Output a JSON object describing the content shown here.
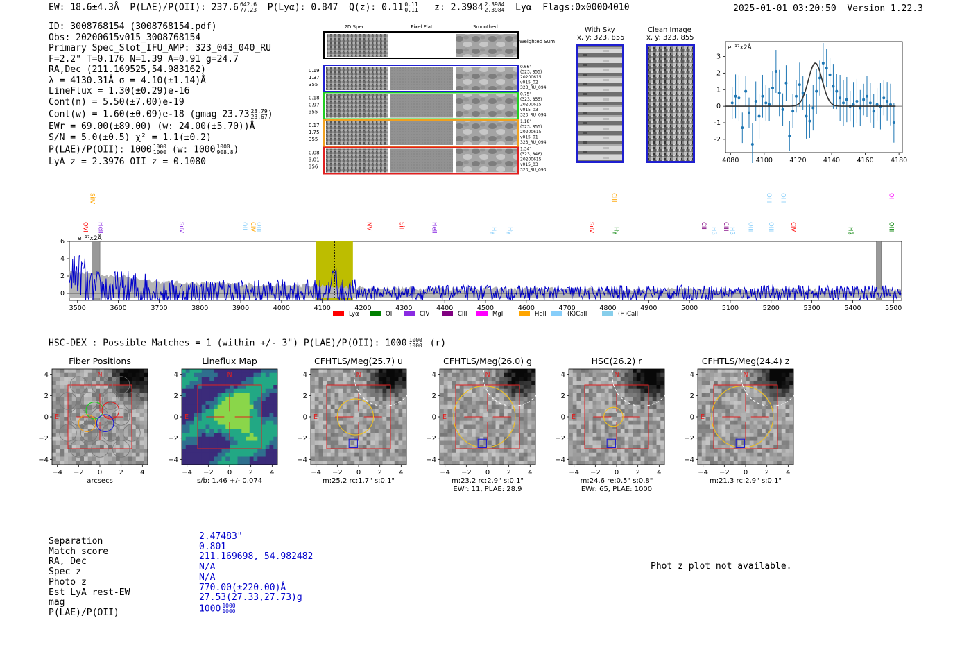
{
  "header": {
    "ew": "EW: 18.6±4.3Å",
    "plae": "P(LAE)/P(OII): 237.6",
    "plae_hi": "642.6",
    "plae_lo": "77.23",
    "plya": "P(Lyα): 0.847",
    "qz": "Q(z): 0.11",
    "qz_hi": "0.11",
    "qz_lo": "0.11",
    "z": "z: 2.3984",
    "z_hi": "2.3984",
    "z_lo": "2.3984",
    "line": "Lyα",
    "flags": "Flags:0x00004010",
    "timestamp": "2025-01-01 03:20:50",
    "version": "Version 1.22.3"
  },
  "info": {
    "id": "ID: 3008768154 (3008768154.pdf)",
    "obs": "Obs: 20200615v015_3008768154",
    "primary": "Primary Spec_Slot_IFU_AMP: 323_043_040_RU",
    "fiber": "F=2.2\"  T=0.176  N=1.39  A=0.91  g=24.7",
    "radec": "RA,Dec (211.169525,54.983162)",
    "lambda": "λ = 4130.31Å  σ = 4.10(±1.14)Å",
    "lineflux": "LineFlux = 1.30(±0.29)e-16",
    "contn": "Cont(n) = 5.50(±7.00)e-19",
    "contw": "Cont(w) = 1.60(±0.09)e-18 (gmag 23.73",
    "contw_hi": "23.79",
    "contw_lo": "23.67",
    "ewr": "EWr = 69.00(±89.00) (w: 24.00(±5.70))Å",
    "sn": "S/N = 5.0(±0.5)  χ² = 1.1(±0.2)",
    "plae_line": "P(LAE)/P(OII): 1000",
    "plae_line_hi": "1000",
    "plae_line_lo": "1000",
    "plae_w": "(w: 1000",
    "plae_w_hi": "1000",
    "plae_w_lo": "908.8",
    "lyaz": "LyA z = 2.3976  OII z = 0.1080"
  },
  "cutouts": {
    "col_labels": [
      "2D Spec",
      "Pixel Flat",
      "Smoothed"
    ],
    "weighted_sum": "Weighted Sum",
    "rows": [
      {
        "left": [
          "0.19",
          "1.37",
          "355"
        ],
        "right": [
          "0.66\"",
          "(323, 855)",
          "20200615",
          "v015_02",
          "323_RU_094"
        ],
        "color": "#1f1fd0"
      },
      {
        "left": [
          "0.18",
          "0.97",
          "355"
        ],
        "right": [
          "0.75\"",
          "(323, 855)",
          "20200615",
          "v015_03",
          "323_RU_094"
        ],
        "color": "#22cc22"
      },
      {
        "left": [
          "0.17",
          "1.75",
          "355"
        ],
        "right": [
          "1.18\"",
          "(323, 855)",
          "20200615",
          "v015_01",
          "323_RU_094"
        ],
        "color": "#f0a020"
      },
      {
        "left": [
          "0.08",
          "3.01",
          "356"
        ],
        "right": [
          "1.34\"",
          "(323, 846)",
          "20200615",
          "v015_03",
          "323_RU_093"
        ],
        "color": "#e02020"
      }
    ],
    "with_sky_title": "With Sky",
    "with_sky_xy": "x, y: 323, 855",
    "clean_title": "Clean Image",
    "clean_xy": "x, y: 323, 855"
  },
  "fit_plot": {
    "unit": "e⁻¹⁷x2Å",
    "xticks": [
      "4080",
      "4100",
      "4120",
      "4140",
      "4160",
      "4180"
    ],
    "yticks": [
      "3",
      "2",
      "1",
      "0",
      "-1",
      "-2"
    ]
  },
  "chart_data": [
    {
      "type": "scatter",
      "title": "Line fit",
      "xlabel": "",
      "ylabel": "e-17 x2A",
      "xlim": [
        4077,
        4182
      ],
      "ylim": [
        -2.8,
        3.9
      ],
      "x": [
        4081,
        4083,
        4085,
        4087,
        4089,
        4091,
        4093,
        4095,
        4097,
        4099,
        4101,
        4103,
        4105,
        4107,
        4109,
        4111,
        4113,
        4115,
        4117,
        4119,
        4121,
        4123,
        4125,
        4127,
        4129,
        4131,
        4133,
        4135,
        4137,
        4139,
        4141,
        4143,
        4145,
        4147,
        4149,
        4151,
        4153,
        4155,
        4157,
        4159,
        4161,
        4163,
        4165,
        4167,
        4169,
        4171,
        4173,
        4175,
        4177
      ],
      "y": [
        0.2,
        0.6,
        0.5,
        -1.3,
        0.9,
        -0.4,
        -2.3,
        0.3,
        -0.6,
        0.6,
        0.2,
        0.1,
        1.1,
        2.1,
        0.8,
        -0.2,
        1.4,
        -1.8,
        -0.3,
        0.6,
        1.3,
        0.8,
        -0.6,
        -0.9,
        -0.1,
        0.9,
        1.7,
        2.6,
        2.3,
        1.9,
        1.2,
        0.9,
        0.5,
        0.2,
        0.4,
        0.0,
        0.1,
        0.3,
        -0.1,
        0.4,
        0.6,
        0.2,
        -0.3,
        0.1,
        0.0,
        0.5,
        0.3,
        0.1,
        -1.0
      ],
      "gauss_center": 4130.3,
      "gauss_sigma": 4.1,
      "gauss_amp": 2.6
    },
    {
      "type": "line",
      "title": "Full spectrum",
      "ylabel": "e-17 x2A",
      "xlim": [
        3480,
        5520
      ],
      "ylim": [
        -0.8,
        6
      ],
      "xticks": [
        "3500",
        "3600",
        "3700",
        "3800",
        "3900",
        "4000",
        "4100",
        "4200",
        "4300",
        "4400",
        "4500",
        "4600",
        "4700",
        "4800",
        "4900",
        "5000",
        "5100",
        "5200",
        "5300",
        "5400",
        "5500"
      ],
      "yticks": [
        "6",
        "4",
        "2",
        "0"
      ],
      "highlight_range": [
        4085,
        4175
      ],
      "marker": 4130.3,
      "mask_ranges": [
        [
          3535,
          3555
        ],
        [
          5458,
          5470
        ]
      ],
      "legend": [
        {
          "label": "Lyα",
          "color": "#ff0000"
        },
        {
          "label": "OII",
          "color": "#008000"
        },
        {
          "label": "CIV",
          "color": "#8a2be2"
        },
        {
          "label": "CIII",
          "color": "#800080"
        },
        {
          "label": "MgII",
          "color": "#ff00ff"
        },
        {
          "label": "HeII",
          "color": "#ffa500"
        },
        {
          "label": "(K)CaII",
          "color": "#87cefa"
        },
        {
          "label": "(H)CaII",
          "color": "#87ceeb"
        }
      ],
      "line_labels": [
        {
          "t": "OVI",
          "x": 3515,
          "row": 2,
          "c": "#ff0000"
        },
        {
          "t": "SiIV",
          "x": 3532,
          "row": 0,
          "c": "#ffa500"
        },
        {
          "t": "HeII",
          "x": 3552,
          "row": 2,
          "c": "#8a2be2"
        },
        {
          "t": "SiIV",
          "x": 3750,
          "row": 2,
          "c": "#8a2be2"
        },
        {
          "t": "OII",
          "x": 3905,
          "row": 2,
          "c": "#87cefa"
        },
        {
          "t": "CIV",
          "x": 3925,
          "row": 2,
          "c": "#ffa500"
        },
        {
          "t": "OIII",
          "x": 3940,
          "row": 2,
          "c": "#87cefa"
        },
        {
          "t": "NV",
          "x": 4210,
          "row": 2,
          "c": "#ff0000"
        },
        {
          "t": "SiII",
          "x": 4290,
          "row": 2,
          "c": "#ff0000"
        },
        {
          "t": "HeII",
          "x": 4370,
          "row": 2,
          "c": "#8a2be2"
        },
        {
          "t": "Hγ",
          "x": 4515,
          "row": 3,
          "c": "#87cefa"
        },
        {
          "t": "Hγ",
          "x": 4555,
          "row": 3,
          "c": "#87cefa"
        },
        {
          "t": "SiIV",
          "x": 4755,
          "row": 2,
          "c": "#ff0000"
        },
        {
          "t": "CIII",
          "x": 4810,
          "row": 0,
          "c": "#ffa500"
        },
        {
          "t": "Hγ",
          "x": 4815,
          "row": 3,
          "c": "#008000"
        },
        {
          "t": "CII",
          "x": 5030,
          "row": 2,
          "c": "#800080"
        },
        {
          "t": "Hβ",
          "x": 5055,
          "row": 3,
          "c": "#87cefa"
        },
        {
          "t": "CIII",
          "x": 5085,
          "row": 2,
          "c": "#800080"
        },
        {
          "t": "Hβ",
          "x": 5100,
          "row": 3,
          "c": "#87cefa"
        },
        {
          "t": "OIII",
          "x": 5145,
          "row": 2,
          "c": "#87cefa"
        },
        {
          "t": "OIII",
          "x": 5190,
          "row": 0,
          "c": "#87cefa"
        },
        {
          "t": "OIII",
          "x": 5195,
          "row": 2,
          "c": "#87cefa"
        },
        {
          "t": "OIII",
          "x": 5225,
          "row": 0,
          "c": "#87cefa"
        },
        {
          "t": "CIV",
          "x": 5250,
          "row": 2,
          "c": "#ff0000"
        },
        {
          "t": "Hβ",
          "x": 5390,
          "row": 3,
          "c": "#008000"
        },
        {
          "t": "OII",
          "x": 5490,
          "row": 0,
          "c": "#ff00ff"
        },
        {
          "t": "OIII",
          "x": 5490,
          "row": 2,
          "c": "#008000"
        }
      ]
    }
  ],
  "spec_unit": "e⁻¹⁷x2Å",
  "hsc": {
    "title": "HSC-DEX : Possible Matches = 1 (within +/- 3\")  P(LAE)/P(OII): 1000",
    "title_hi": "1000",
    "title_lo": "1000",
    "title_tail": "(r)"
  },
  "panels": [
    {
      "title": "Fiber Positions",
      "cap1": "arcsecs",
      "cap2": ""
    },
    {
      "title": "Lineflux Map",
      "cap1": "s/b: 1.46 +/- 0.074",
      "cap2": ""
    },
    {
      "title": "CFHTLS/Meg(25.7) u",
      "cap1": "m:25.2 rc:1.7\"  s:0.1\"",
      "cap2": ""
    },
    {
      "title": "CFHTLS/Meg(26.0) g",
      "cap1": "m:23.2 rc:2.9\"  s:0.1\"",
      "cap2": "EWr: 11, PLAE: 28.9"
    },
    {
      "title": "HSC(26.2) r",
      "cap1": "m:24.6  re:0.5\"  s:0.8\"",
      "cap2": "EWr: 65, PLAE: 1000"
    },
    {
      "title": "CFHTLS/Meg(24.4) z",
      "cap1": "m:21.3 rc:2.9\"  s:0.1\"",
      "cap2": ""
    }
  ],
  "panel_axis": {
    "xticks": [
      "−4",
      "−2",
      "0",
      "2",
      "4"
    ],
    "yticks": [
      "4",
      "2",
      "0",
      "−2",
      "−4"
    ],
    "north": "N",
    "east": "E"
  },
  "match": {
    "labels": [
      "Separation",
      "Match score",
      "RA, Dec",
      "Spec z",
      "Photo z",
      "Est LyA rest-EW",
      "mag",
      "P(LAE)/P(OII)"
    ],
    "values": [
      "2.47483\"",
      "0.801",
      "211.169698, 54.982482",
      "N/A",
      "N/A",
      "770.00(±220.00)Å",
      "27.53(27.33,27.73)g",
      "1000"
    ],
    "plae_hi": "1000",
    "plae_lo": "1000"
  },
  "photz_note": "Phot z plot not available."
}
